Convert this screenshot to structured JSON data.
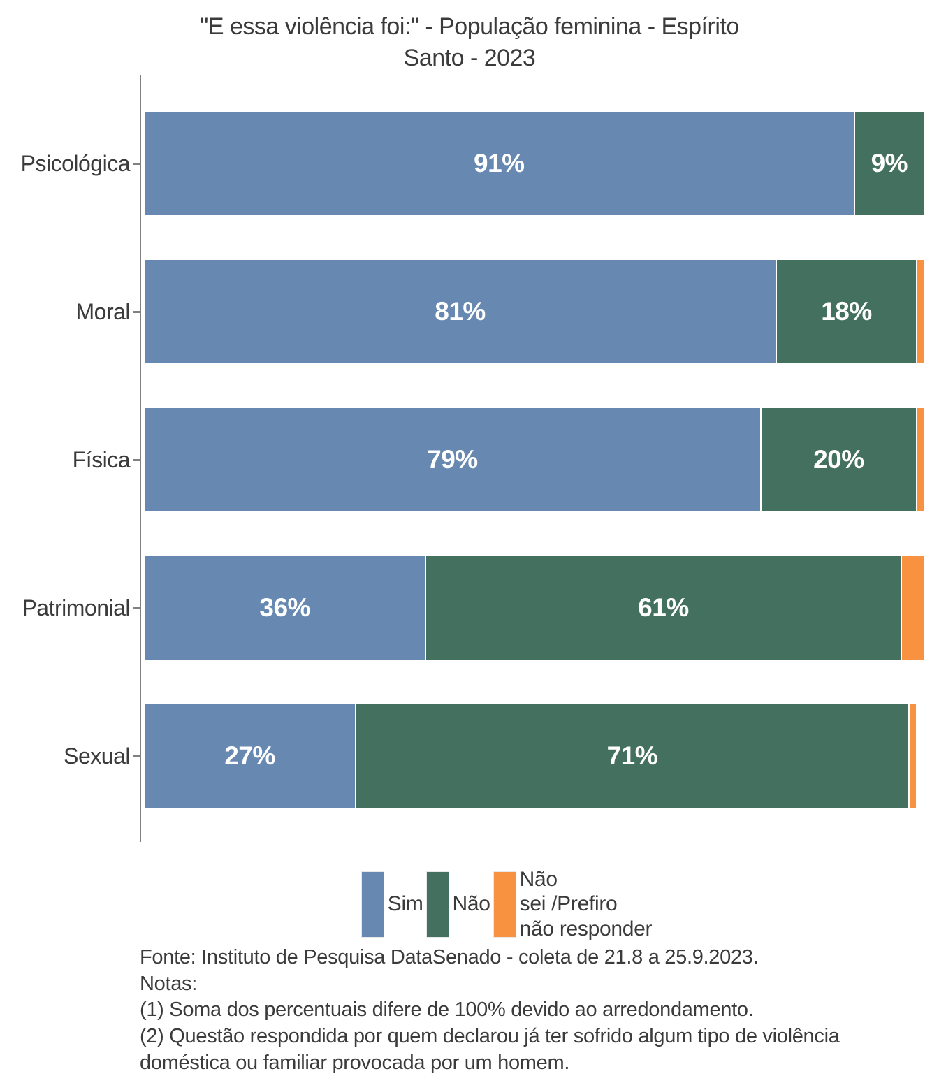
{
  "title": {
    "line1": "\"E essa violência foi:\" - População feminina - Espírito",
    "line2": "Santo - 2023"
  },
  "chart_data": {
    "type": "bar",
    "orientation": "horizontal",
    "stacked": true,
    "unit": "%",
    "title": "\"E essa violência foi:\" - População feminina - Espírito Santo - 2023",
    "categories": [
      "Psicológica",
      "Moral",
      "Física",
      "Patrimonial",
      "Sexual"
    ],
    "series": [
      {
        "key": "sim",
        "name": "Sim",
        "color": "#6789B1",
        "values": [
          91,
          81,
          79,
          36,
          27
        ],
        "labels": [
          "91%",
          "81%",
          "79%",
          "36%",
          "27%"
        ]
      },
      {
        "key": "nao",
        "name": "Não",
        "color": "#447060",
        "values": [
          9,
          18,
          20,
          61,
          71
        ],
        "labels": [
          "9%",
          "18%",
          "20%",
          "61%",
          "71%"
        ]
      },
      {
        "key": "nao-sei-prefiro-nao-responder",
        "name": "Não sei /Prefiro não responder",
        "color": "#F99240",
        "values": [
          0,
          1,
          1,
          3,
          1
        ],
        "labels": [
          "",
          "",
          "",
          "",
          ""
        ]
      }
    ],
    "xlim": [
      0,
      100
    ],
    "x_axis_visible": false,
    "grid": false,
    "legend_position": "bottom",
    "value_label_color": "#ffffff",
    "axis_line_color": "#808080"
  },
  "legend": {
    "items": [
      {
        "key": "sim",
        "label": "Sim",
        "color": "#6789B1"
      },
      {
        "key": "nao",
        "label": "Não",
        "color": "#447060"
      },
      {
        "key": "nao-sei-prefiro-nao-responder",
        "label": "Não\nsei /Prefiro\nnão responder",
        "color": "#F99240"
      }
    ]
  },
  "footer": {
    "fonte": "Fonte: Instituto de Pesquisa DataSenado - coleta de 21.8 a 25.9.2023.",
    "notas_label": "Notas:",
    "nota1": "(1) Soma dos percentuais difere de 100% devido ao arredondamento.",
    "nota2": "(2) Questão respondida por quem declarou já ter sofrido algum tipo de violência doméstica ou familiar provocada por um homem."
  },
  "colors": {
    "sim": "#6789B1",
    "nao": "#447060",
    "nao_sei": "#F99240",
    "axis": "#808080",
    "text": "#3b3b3b",
    "background": "#ffffff"
  }
}
